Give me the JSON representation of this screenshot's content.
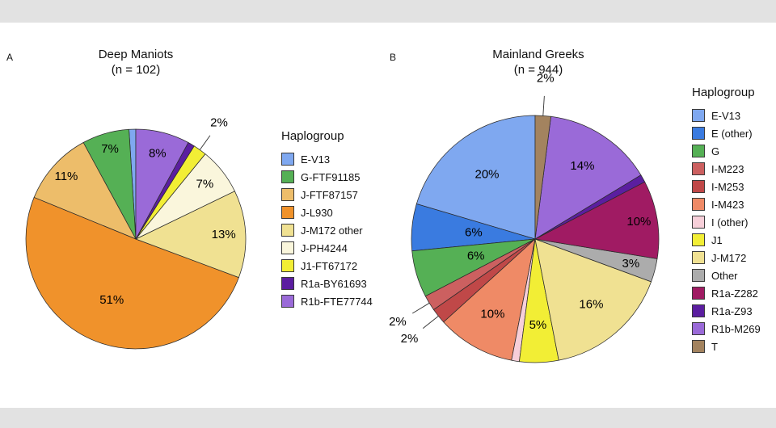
{
  "figure": {
    "background": "#ffffff",
    "letterbox_color": "#e2e2e2"
  },
  "panels": [
    {
      "tag": "A",
      "title": "Deep Maniots",
      "subtitle": "(n = 102)",
      "legend_title": "Haplogroup"
    },
    {
      "tag": "B",
      "title": "Mainland Greeks",
      "subtitle": "(n = 944)",
      "legend_title": "Haplogroup"
    }
  ],
  "chart_data": [
    {
      "type": "pie",
      "panel": "A",
      "title": "Deep Maniots",
      "n": 102,
      "legend_title": "Haplogroup",
      "direction": "counterclockwise",
      "start_angle_deg": 90,
      "slices": [
        {
          "name": "E-V13",
          "percent": 1,
          "color": "#7FA8F0",
          "label": null,
          "label_pos": null
        },
        {
          "name": "G-FTF91185",
          "percent": 7,
          "color": "#55B055",
          "label": "7%",
          "label_pos": "inside",
          "label_radius_frac": 0.85
        },
        {
          "name": "J-FTF87157",
          "percent": 11,
          "color": "#EDBD6A",
          "label": "11%",
          "label_pos": "inside",
          "label_radius_frac": 0.85
        },
        {
          "name": "J-L930",
          "percent": 51,
          "color": "#F0922B",
          "label": "51%",
          "label_pos": "inside",
          "label_radius_frac": 0.6
        },
        {
          "name": "J-M172 other",
          "percent": 13,
          "color": "#F0E192",
          "label": "13%",
          "label_pos": "inside",
          "label_radius_frac": 0.8
        },
        {
          "name": "J-PH4244",
          "percent": 7,
          "color": "#FAF6DC",
          "label": "7%",
          "label_pos": "inside",
          "label_radius_frac": 0.8
        },
        {
          "name": "J1-FT67172",
          "percent": 2,
          "color": "#F2EE35",
          "label": "2%",
          "label_pos": "outside"
        },
        {
          "name": "R1a-BY61693",
          "percent": 1,
          "color": "#5B1EA0",
          "label": null,
          "label_pos": null
        },
        {
          "name": "R1b-FTE77744",
          "percent": 8,
          "color": "#9A6AD8",
          "label": "8%",
          "label_pos": "inside",
          "label_radius_frac": 0.8
        }
      ]
    },
    {
      "type": "pie",
      "panel": "B",
      "title": "Mainland Greeks",
      "n": 944,
      "legend_title": "Haplogroup",
      "direction": "counterclockwise",
      "start_angle_deg": 90,
      "slices": [
        {
          "name": "E-V13",
          "percent": 20,
          "color": "#7FA8F0",
          "label": "20%",
          "label_pos": "inside",
          "label_radius_frac": 0.65
        },
        {
          "name": "E (other)",
          "percent": 6,
          "color": "#3A7BE0",
          "label": "6%",
          "label_pos": "inside",
          "label_radius_frac": 0.5
        },
        {
          "name": "G",
          "percent": 6,
          "color": "#55B055",
          "label": "6%",
          "label_pos": "inside",
          "label_radius_frac": 0.5
        },
        {
          "name": "I-M223",
          "percent": 2,
          "color": "#CC6060",
          "label": "2%",
          "label_pos": "outside"
        },
        {
          "name": "I-M253",
          "percent": 2,
          "color": "#C04848",
          "label": "2%",
          "label_pos": "outside"
        },
        {
          "name": "I-M423",
          "percent": 10,
          "color": "#EF8A66",
          "label": "10%",
          "label_pos": "inside",
          "label_radius_frac": 0.7
        },
        {
          "name": "I (other)",
          "percent": 1,
          "color": "#F7CFD9",
          "label": null,
          "label_pos": null
        },
        {
          "name": "J1",
          "percent": 5,
          "color": "#F2EE35",
          "label": "5%",
          "label_pos": "inside",
          "label_radius_frac": 0.7
        },
        {
          "name": "J-M172",
          "percent": 16,
          "color": "#F0E192",
          "label": "16%",
          "label_pos": "inside",
          "label_radius_frac": 0.7
        },
        {
          "name": "Other",
          "percent": 3,
          "color": "#ACACAC",
          "label": "3%",
          "label_pos": "inside",
          "label_radius_frac": 0.8
        },
        {
          "name": "R1a-Z282",
          "percent": 10,
          "color": "#A01B63",
          "label": "10%",
          "label_pos": "inside",
          "label_radius_frac": 0.85
        },
        {
          "name": "R1a-Z93",
          "percent": 1,
          "color": "#5B1EA0",
          "label": null,
          "label_pos": null
        },
        {
          "name": "R1b-M269",
          "percent": 14,
          "color": "#9A6AD8",
          "label": "14%",
          "label_pos": "inside",
          "label_radius_frac": 0.7
        },
        {
          "name": "T",
          "percent": 2,
          "color": "#A3835F",
          "label": "2%",
          "label_pos": "outside"
        }
      ]
    }
  ]
}
